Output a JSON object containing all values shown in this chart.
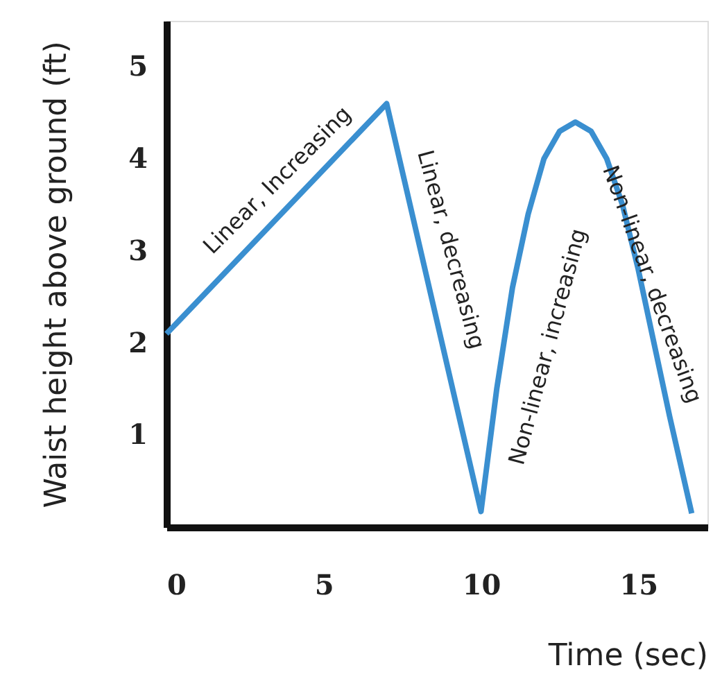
{
  "chart_data": {
    "type": "line",
    "xlabel": "Time (sec)",
    "ylabel": "Waist height above ground (ft)",
    "x": [
      0,
      7,
      10,
      10.5,
      11,
      11.5,
      12,
      12.5,
      13,
      13.5,
      14,
      14.5,
      15,
      15.5,
      16,
      16.7
    ],
    "series": [
      {
        "color": "#3a8fd0",
        "values": [
          2.1,
          4.6,
          0.17,
          1.5,
          2.6,
          3.4,
          4.0,
          4.3,
          4.4,
          4.3,
          4.0,
          3.5,
          2.8,
          2.0,
          1.2,
          0.15
        ]
      }
    ],
    "xlim": [
      0,
      17.2
    ],
    "ylim": [
      0,
      5.5
    ],
    "xticks": [
      0,
      5,
      10,
      15
    ],
    "yticks": [
      1,
      2,
      3,
      4,
      5
    ],
    "grid": false,
    "marker": "none",
    "line_style": "solid",
    "annotations": [
      "Linear, Increasing",
      "Linear, decreasing",
      "Non-linear, increasing",
      "Non-linear, decreasing"
    ]
  }
}
